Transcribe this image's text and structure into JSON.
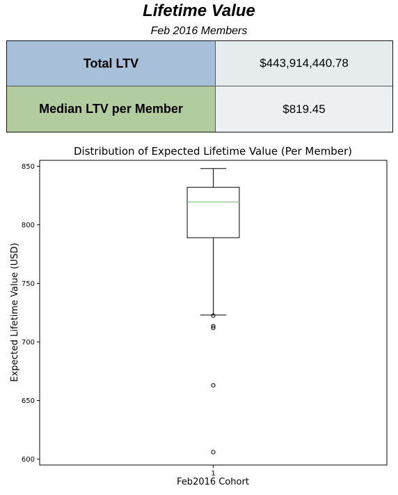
{
  "header": {
    "title": "Lifetime Value",
    "subtitle": "Feb 2016 Members"
  },
  "kpis": [
    {
      "label": "Total LTV",
      "value": "$443,914,440.78",
      "label_color": "#a7bfd9",
      "value_color": "#e6ebee"
    },
    {
      "label": "Median LTV per Member",
      "value": "$819.45",
      "label_color": "#b2cb9f",
      "value_color": "#edf0f2"
    }
  ],
  "chart_data": {
    "type": "box",
    "title": "Distribution of Expected Lifetime Value (Per Member)",
    "xlabel": "Feb2016 Cohort",
    "ylabel": "Expected Lifetime Value (USD)",
    "categories": [
      "1"
    ],
    "ylim": [
      595,
      855
    ],
    "yticks": [
      600,
      650,
      700,
      750,
      800,
      850
    ],
    "boxes": [
      {
        "whisker_low": 723,
        "q1": 789,
        "median": 819.45,
        "q3": 832,
        "whisker_high": 848,
        "outliers": [
          722.5,
          713.5,
          712,
          663,
          606
        ]
      }
    ],
    "box_color": "#000000",
    "median_color": "#8fc08a",
    "grid": false
  }
}
